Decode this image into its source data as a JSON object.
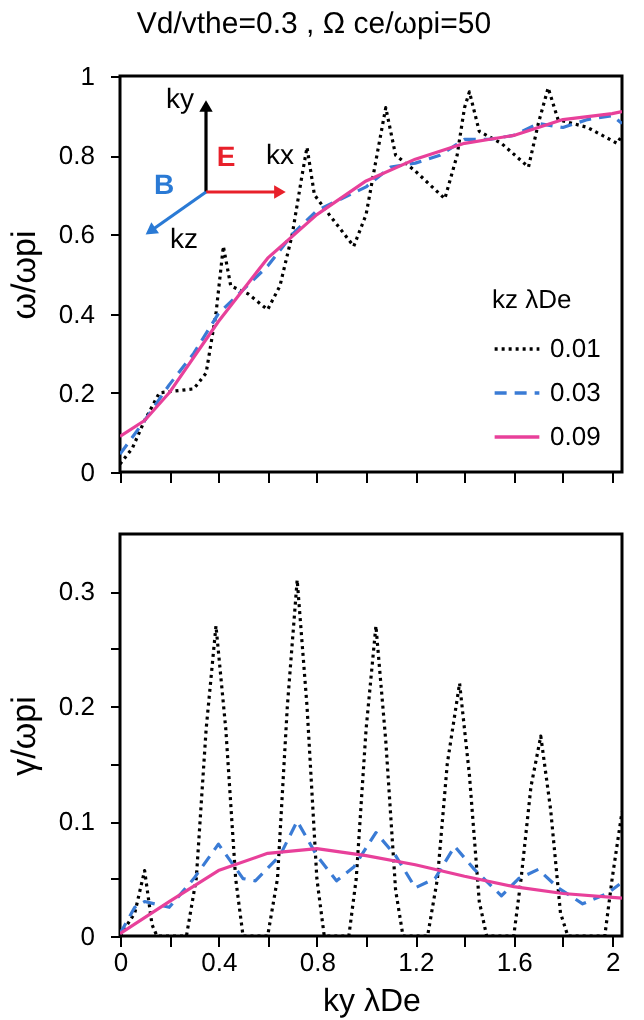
{
  "chart_data": [
    {
      "type": "line",
      "title": "Vd/vthe=0.3 , Ω ce/ωpi=50",
      "ylabel": "ω/ωpi",
      "legend_title": "kz λDe",
      "legend": "bottom right",
      "grid": false,
      "tick_labels": "y",
      "xlim": [
        0,
        2.04
      ],
      "xticks": [
        {
          "value": 0,
          "label": null
        },
        {
          "value": 0.2,
          "label": null
        },
        {
          "value": 0.4,
          "label": null
        },
        {
          "value": 0.6,
          "label": null
        },
        {
          "value": 0.8,
          "label": null
        },
        {
          "value": 1.0,
          "label": null
        },
        {
          "value": 1.2,
          "label": null
        },
        {
          "value": 1.4,
          "label": null
        },
        {
          "value": 1.6,
          "label": null
        },
        {
          "value": 1.8,
          "label": null
        },
        {
          "value": 2.0,
          "label": null
        }
      ],
      "ylim": [
        0,
        1
      ],
      "yticks": [
        0,
        0.2,
        0.4,
        0.6,
        0.8,
        1
      ],
      "annotations": [
        "ky",
        "kx",
        "E",
        "B",
        "kz"
      ],
      "series": [
        {
          "name": "0.01",
          "color": "#000000",
          "line_style": "dotted",
          "x": [
            0,
            0.05,
            0.1,
            0.16,
            0.3,
            0.35,
            0.39,
            0.42,
            0.45,
            0.52,
            0.6,
            0.65,
            0.7,
            0.74,
            0.76,
            0.79,
            0.85,
            0.95,
            1.0,
            1.05,
            1.08,
            1.12,
            1.2,
            1.32,
            1.37,
            1.4,
            1.42,
            1.46,
            1.55,
            1.66,
            1.7,
            1.74,
            1.78,
            1.9,
            2.02,
            2.04
          ],
          "values": [
            0.02,
            0.06,
            0.13,
            0.2,
            0.21,
            0.25,
            0.4,
            0.57,
            0.47,
            0.45,
            0.41,
            0.47,
            0.6,
            0.75,
            0.82,
            0.7,
            0.65,
            0.57,
            0.65,
            0.82,
            0.92,
            0.8,
            0.76,
            0.69,
            0.8,
            0.92,
            0.96,
            0.86,
            0.83,
            0.77,
            0.88,
            0.97,
            0.89,
            0.87,
            0.83,
            0.85
          ]
        },
        {
          "name": "0.03",
          "color": "#3a7bd5",
          "line_style": "dashed",
          "x": [
            0,
            0.1,
            0.2,
            0.3,
            0.4,
            0.5,
            0.6,
            0.7,
            0.8,
            0.9,
            1.0,
            1.1,
            1.2,
            1.3,
            1.4,
            1.5,
            1.6,
            1.7,
            1.8,
            1.9,
            2.0,
            2.04
          ],
          "values": [
            0.045,
            0.13,
            0.22,
            0.3,
            0.4,
            0.46,
            0.52,
            0.6,
            0.66,
            0.69,
            0.72,
            0.77,
            0.78,
            0.8,
            0.84,
            0.84,
            0.85,
            0.88,
            0.87,
            0.89,
            0.9,
            0.88
          ]
        },
        {
          "name": "0.09",
          "color": "#e8409a",
          "line_style": "solid",
          "x": [
            0,
            0.1,
            0.2,
            0.4,
            0.6,
            0.8,
            1.0,
            1.2,
            1.4,
            1.6,
            1.8,
            2.0,
            2.04
          ],
          "values": [
            0.09,
            0.13,
            0.2,
            0.38,
            0.54,
            0.65,
            0.735,
            0.79,
            0.83,
            0.85,
            0.89,
            0.905,
            0.91
          ]
        }
      ]
    },
    {
      "type": "line",
      "xlabel": "ky λDe",
      "ylabel": "γ/ωpi",
      "grid": false,
      "xlim": [
        0,
        2.04
      ],
      "xticks": [
        0,
        {
          "value": 0.2,
          "label": null
        },
        0.4,
        {
          "value": 0.6,
          "label": null
        },
        0.8,
        {
          "value": 1.0,
          "label": null
        },
        1.2,
        {
          "value": 1.4,
          "label": null
        },
        1.6,
        {
          "value": 1.8,
          "label": null
        },
        2
      ],
      "ylim": [
        0,
        0.35
      ],
      "yticks": [
        0,
        {
          "value": 0.05,
          "label": null
        },
        0.1,
        {
          "value": 0.15,
          "label": null
        },
        0.2,
        {
          "value": 0.25,
          "label": null
        },
        0.3
      ],
      "series": [
        {
          "color": "#000000",
          "line_style": "dotted",
          "x": [
            0,
            0.06,
            0.1,
            0.13,
            0.15,
            0.27,
            0.31,
            0.35,
            0.39,
            0.43,
            0.47,
            0.5,
            0.6,
            0.64,
            0.68,
            0.72,
            0.76,
            0.8,
            0.83,
            0.93,
            0.96,
            1.0,
            1.04,
            1.08,
            1.12,
            1.15,
            1.25,
            1.29,
            1.33,
            1.38,
            1.42,
            1.46,
            1.49,
            1.6,
            1.63,
            1.67,
            1.71,
            1.75,
            1.79,
            1.82,
            1.97,
            2.0,
            2.04
          ],
          "values": [
            0,
            0.02,
            0.057,
            0.01,
            0,
            0,
            0.05,
            0.18,
            0.27,
            0.18,
            0.05,
            0,
            0,
            0.05,
            0.2,
            0.31,
            0.2,
            0.05,
            0,
            0,
            0.05,
            0.18,
            0.27,
            0.17,
            0.04,
            0,
            0,
            0.05,
            0.15,
            0.22,
            0.14,
            0.03,
            0,
            0,
            0.05,
            0.13,
            0.174,
            0.11,
            0.02,
            0,
            0,
            0.05,
            0.108
          ]
        },
        {
          "color": "#3a7bd5",
          "line_style": "dashed",
          "x": [
            0,
            0.06,
            0.1,
            0.2,
            0.3,
            0.4,
            0.5,
            0.55,
            0.65,
            0.72,
            0.8,
            0.88,
            0.95,
            1.04,
            1.12,
            1.2,
            1.28,
            1.36,
            1.44,
            1.55,
            1.62,
            1.7,
            1.78,
            1.88,
            1.98,
            2.03
          ],
          "values": [
            0.002,
            0.025,
            0.03,
            0.025,
            0.05,
            0.08,
            0.05,
            0.048,
            0.07,
            0.1,
            0.07,
            0.048,
            0.06,
            0.09,
            0.07,
            0.042,
            0.05,
            0.078,
            0.058,
            0.035,
            0.05,
            0.058,
            0.042,
            0.028,
            0.037,
            0.045
          ]
        },
        {
          "color": "#e8409a",
          "line_style": "solid",
          "x": [
            0,
            0.2,
            0.4,
            0.6,
            0.8,
            1.0,
            1.2,
            1.4,
            1.6,
            1.8,
            2.04
          ],
          "values": [
            0.002,
            0.03,
            0.057,
            0.072,
            0.076,
            0.07,
            0.062,
            0.052,
            0.043,
            0.037,
            0.033
          ]
        }
      ]
    }
  ]
}
